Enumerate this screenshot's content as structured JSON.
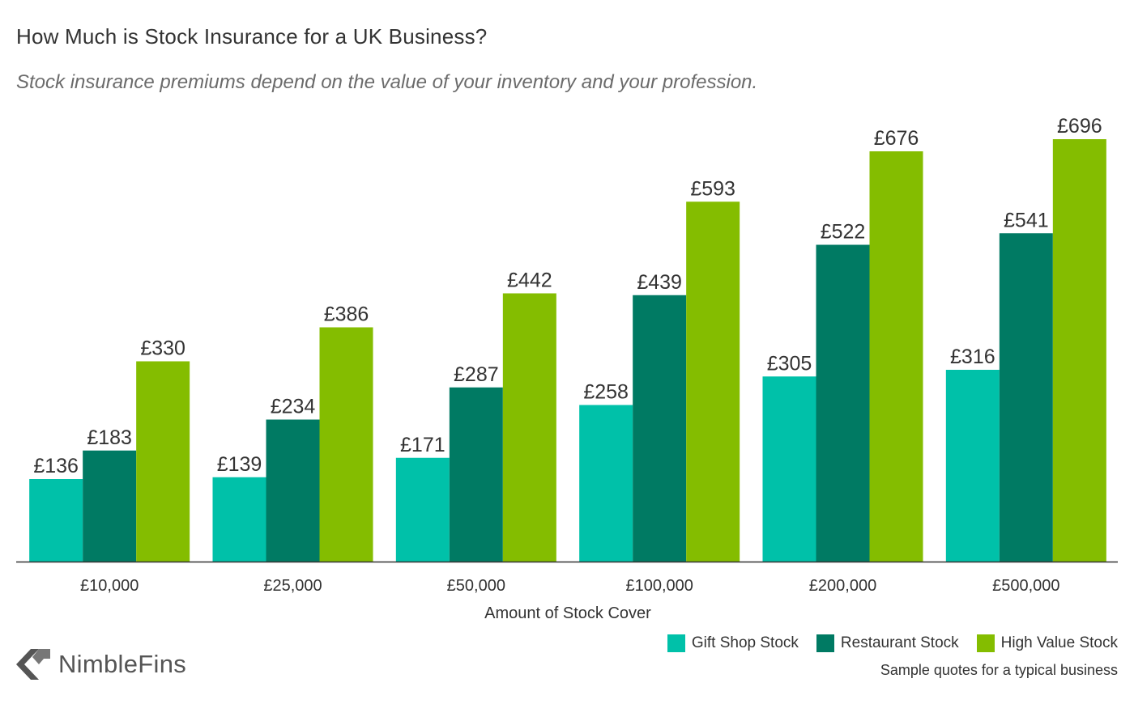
{
  "title": "How Much is Stock Insurance for a UK Business?",
  "subtitle": "Stock insurance premiums depend on the value of your inventory and your profession.",
  "footnote": "Sample quotes for a typical business",
  "brand": {
    "name": "NimbleFins",
    "icon": "chevron-logo-icon"
  },
  "chart_data": {
    "type": "bar",
    "xlabel": "Amount of Stock Cover",
    "ylabel": "",
    "ylim": [
      0,
      750
    ],
    "categories": [
      "£10,000",
      "£25,000",
      "£50,000",
      "£100,000",
      "£200,000",
      "£500,000"
    ],
    "series": [
      {
        "name": "Gift Shop Stock",
        "color": "#00c1a9",
        "values": [
          136,
          139,
          171,
          258,
          305,
          316
        ]
      },
      {
        "name": "Restaurant Stock",
        "color": "#007a63",
        "values": [
          183,
          234,
          287,
          439,
          522,
          541
        ]
      },
      {
        "name": "High Value Stock",
        "color": "#84bd00",
        "values": [
          330,
          386,
          442,
          593,
          676,
          696
        ]
      }
    ],
    "value_prefix": "£",
    "grid": false,
    "legend_position": "bottom-right"
  }
}
